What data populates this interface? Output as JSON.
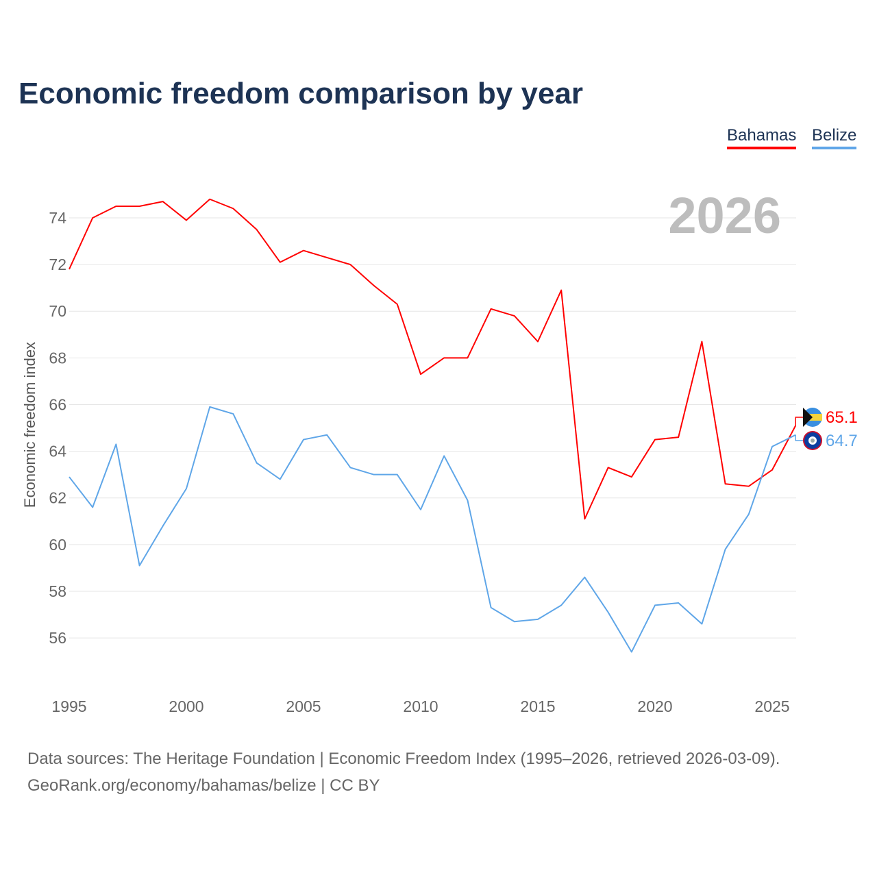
{
  "title": "Economic freedom comparison by year",
  "year_label": "2026",
  "source": {
    "line1": "Data sources: The Heritage Foundation | Economic Freedom Index (1995–2026, retrieved 2026-03-09).",
    "line2": "GeoRank.org/economy/bahamas/belize | CC BY"
  },
  "chart_data": {
    "type": "line",
    "title": "Economic freedom comparison by year",
    "xlabel": "",
    "ylabel": "Economic freedom index",
    "xlim": [
      1995,
      2026
    ],
    "ylim": [
      54,
      75.5
    ],
    "xticks": [
      1995,
      2000,
      2005,
      2010,
      2015,
      2020,
      2025
    ],
    "yticks": [
      56,
      58,
      60,
      62,
      64,
      66,
      68,
      70,
      72,
      74
    ],
    "grid": true,
    "legend": "top-right",
    "x": [
      1995,
      1996,
      1997,
      1998,
      1999,
      2000,
      2001,
      2002,
      2003,
      2004,
      2005,
      2006,
      2007,
      2008,
      2009,
      2010,
      2011,
      2012,
      2013,
      2014,
      2015,
      2016,
      2017,
      2018,
      2019,
      2020,
      2021,
      2022,
      2023,
      2024,
      2025,
      2026
    ],
    "series": [
      {
        "name": "Bahamas",
        "color": "#ff0000",
        "end_label": "65.1",
        "values": [
          71.8,
          74.0,
          74.5,
          74.5,
          74.7,
          73.9,
          74.8,
          74.4,
          73.5,
          72.1,
          72.6,
          72.3,
          72.0,
          71.1,
          70.3,
          67.3,
          68.0,
          68.0,
          70.1,
          69.8,
          68.7,
          70.9,
          61.1,
          63.3,
          62.9,
          64.5,
          64.6,
          68.7,
          62.6,
          62.5,
          63.2,
          65.1
        ]
      },
      {
        "name": "Belize",
        "color": "#5fa6e8",
        "end_label": "64.7",
        "values": [
          62.9,
          61.6,
          64.3,
          59.1,
          60.8,
          62.4,
          65.9,
          65.6,
          63.5,
          62.8,
          64.5,
          64.7,
          63.3,
          63.0,
          63.0,
          61.5,
          63.8,
          61.9,
          57.3,
          56.7,
          56.8,
          57.4,
          58.6,
          57.1,
          55.4,
          57.4,
          57.5,
          56.6,
          59.8,
          61.3,
          64.2,
          64.7
        ]
      }
    ]
  }
}
